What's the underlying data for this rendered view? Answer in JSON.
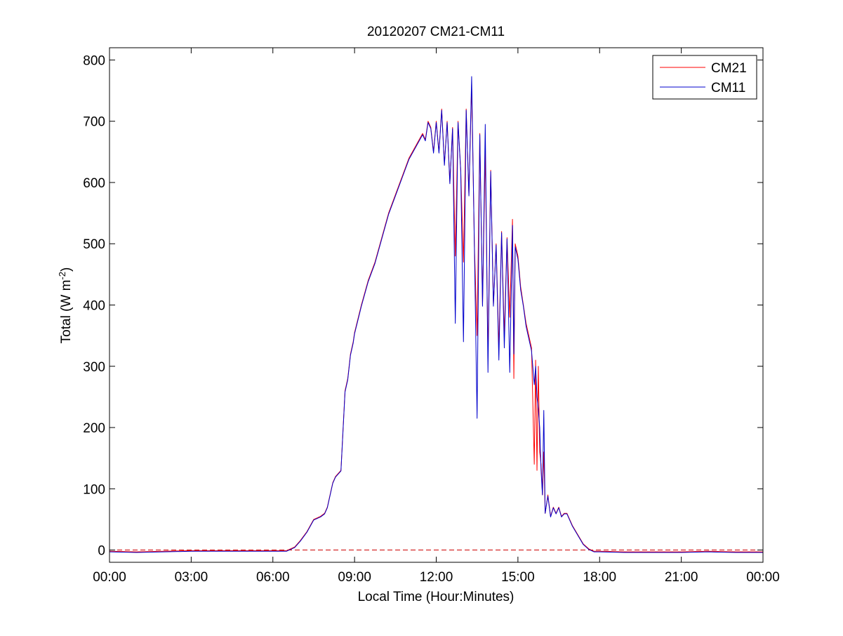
{
  "chart_data": {
    "type": "line",
    "title": "20120207 CM21-CM11",
    "xlabel": "Local Time (Hour:Minutes)",
    "ylabel": {
      "main": "Total (W m",
      "superscript": "-2",
      "close": ")"
    },
    "xlim": [
      0,
      24
    ],
    "ylim": [
      -20,
      820
    ],
    "xticks": [
      {
        "value": 0,
        "label": "00:00"
      },
      {
        "value": 3,
        "label": "03:00"
      },
      {
        "value": 6,
        "label": "06:00"
      },
      {
        "value": 9,
        "label": "09:00"
      },
      {
        "value": 12,
        "label": "12:00"
      },
      {
        "value": 15,
        "label": "15:00"
      },
      {
        "value": 18,
        "label": "18:00"
      },
      {
        "value": 21,
        "label": "21:00"
      },
      {
        "value": 24,
        "label": "00:00"
      }
    ],
    "yticks": [
      {
        "value": 0,
        "label": "0"
      },
      {
        "value": 100,
        "label": "100"
      },
      {
        "value": 200,
        "label": "200"
      },
      {
        "value": 300,
        "label": "300"
      },
      {
        "value": 400,
        "label": "400"
      },
      {
        "value": 500,
        "label": "500"
      },
      {
        "value": 600,
        "label": "600"
      },
      {
        "value": 700,
        "label": "700"
      },
      {
        "value": 800,
        "label": "800"
      }
    ],
    "grid": false,
    "legend_position": "top-right",
    "reference_line": {
      "y": 0,
      "style": "dashed",
      "color": "#cc0000"
    },
    "series": [
      {
        "name": "CM21",
        "color": "#ff0000",
        "x": [
          0.0,
          1.0,
          2.0,
          3.0,
          4.0,
          5.0,
          6.0,
          6.5,
          6.8,
          7.0,
          7.25,
          7.5,
          7.75,
          7.9,
          8.0,
          8.1,
          8.2,
          8.3,
          8.4,
          8.5,
          8.65,
          8.75,
          8.8,
          8.85,
          8.9,
          8.95,
          9.0,
          9.25,
          9.5,
          9.75,
          10.0,
          10.25,
          10.5,
          10.75,
          11.0,
          11.25,
          11.5,
          11.6,
          11.7,
          11.8,
          11.9,
          12.0,
          12.1,
          12.2,
          12.3,
          12.4,
          12.5,
          12.6,
          12.7,
          12.8,
          12.9,
          13.0,
          13.1,
          13.2,
          13.3,
          13.4,
          13.5,
          13.6,
          13.7,
          13.8,
          13.9,
          14.0,
          14.1,
          14.2,
          14.3,
          14.4,
          14.5,
          14.6,
          14.7,
          14.8,
          14.85,
          14.9,
          15.0,
          15.1,
          15.2,
          15.3,
          15.4,
          15.5,
          15.6,
          15.65,
          15.7,
          15.75,
          15.8,
          15.85,
          15.9,
          15.95,
          16.0,
          16.1,
          16.2,
          16.3,
          16.4,
          16.5,
          16.6,
          16.7,
          16.8,
          17.0,
          17.2,
          17.4,
          17.6,
          17.8,
          18.0,
          19.0,
          20.0,
          21.0,
          22.0,
          23.0,
          24.0
        ],
        "y": [
          -2,
          -3,
          -2,
          -1,
          -1,
          -1,
          -1,
          -1,
          5,
          15,
          30,
          50,
          55,
          60,
          70,
          90,
          110,
          120,
          125,
          130,
          260,
          280,
          300,
          320,
          330,
          340,
          355,
          400,
          440,
          470,
          510,
          550,
          580,
          610,
          640,
          660,
          680,
          670,
          700,
          690,
          650,
          700,
          650,
          720,
          630,
          700,
          600,
          690,
          480,
          700,
          620,
          470,
          720,
          580,
          760,
          500,
          350,
          680,
          400,
          650,
          320,
          620,
          400,
          500,
          330,
          520,
          350,
          510,
          380,
          540,
          280,
          500,
          480,
          430,
          400,
          370,
          350,
          330,
          140,
          310,
          130,
          300,
          160,
          140,
          90,
          160,
          60,
          90,
          55,
          70,
          60,
          70,
          55,
          60,
          60,
          40,
          25,
          10,
          2,
          -2,
          -2,
          -3,
          -3,
          -3,
          -2,
          -3,
          -3
        ]
      },
      {
        "name": "CM11",
        "color": "#0000cc",
        "x": [
          0.0,
          1.0,
          2.0,
          3.0,
          4.0,
          5.0,
          6.0,
          6.5,
          6.8,
          7.0,
          7.25,
          7.5,
          7.75,
          7.9,
          8.0,
          8.1,
          8.2,
          8.3,
          8.4,
          8.5,
          8.65,
          8.75,
          8.8,
          8.85,
          8.9,
          8.95,
          9.0,
          9.25,
          9.5,
          9.75,
          10.0,
          10.25,
          10.5,
          10.75,
          11.0,
          11.25,
          11.5,
          11.6,
          11.7,
          11.8,
          11.9,
          12.0,
          12.1,
          12.2,
          12.3,
          12.4,
          12.5,
          12.6,
          12.7,
          12.8,
          12.9,
          13.0,
          13.1,
          13.2,
          13.3,
          13.4,
          13.5,
          13.6,
          13.7,
          13.8,
          13.9,
          14.0,
          14.1,
          14.2,
          14.3,
          14.4,
          14.5,
          14.6,
          14.7,
          14.8,
          14.85,
          14.9,
          15.0,
          15.1,
          15.2,
          15.3,
          15.4,
          15.5,
          15.6,
          15.65,
          15.7,
          15.75,
          15.8,
          15.85,
          15.9,
          15.95,
          16.0,
          16.1,
          16.2,
          16.3,
          16.4,
          16.5,
          16.6,
          16.7,
          16.8,
          17.0,
          17.2,
          17.4,
          17.6,
          17.8,
          18.0,
          19.0,
          20.0,
          21.0,
          22.0,
          23.0,
          24.0
        ],
        "y": [
          -3,
          -4,
          -3,
          -2,
          -2,
          -2,
          -2,
          -2,
          4,
          14,
          29,
          49,
          54,
          59,
          69,
          89,
          109,
          119,
          124,
          129,
          258,
          278,
          298,
          318,
          328,
          338,
          353,
          398,
          438,
          468,
          508,
          548,
          578,
          608,
          638,
          658,
          678,
          668,
          698,
          688,
          648,
          698,
          648,
          718,
          628,
          698,
          598,
          688,
          370,
          698,
          618,
          340,
          718,
          578,
          773,
          498,
          215,
          678,
          398,
          695,
          290,
          618,
          398,
          498,
          310,
          518,
          330,
          508,
          290,
          530,
          320,
          495,
          475,
          425,
          398,
          365,
          345,
          325,
          270,
          300,
          250,
          230,
          200,
          130,
          90,
          228,
          60,
          88,
          54,
          69,
          59,
          69,
          54,
          59,
          59,
          39,
          24,
          9,
          1,
          -3,
          -3,
          -4,
          -4,
          -4,
          -3,
          -4,
          -4
        ]
      }
    ]
  }
}
